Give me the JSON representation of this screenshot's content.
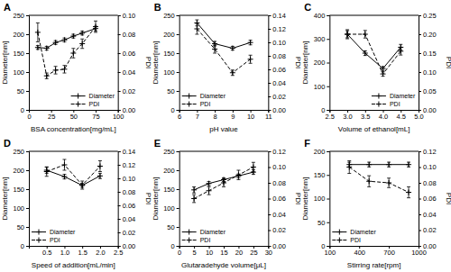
{
  "chart_data": [
    {
      "type": "line",
      "title": "A",
      "xlabel": "BSA concentration[mg/mL]",
      "ylabel": "Diameter[nm]",
      "y2label": "PDI",
      "x": [
        10,
        20,
        30,
        40,
        50,
        60,
        75
      ],
      "xlim": [
        0,
        100
      ],
      "xticks": [
        0,
        25,
        50,
        75,
        100
      ],
      "ylim": [
        0,
        250
      ],
      "yticks": [
        0,
        50,
        100,
        150,
        200,
        250
      ],
      "y2lim": [
        0,
        0.1
      ],
      "y2ticks": [
        {
          "value": 0,
          "label": "0.00"
        },
        0.02,
        0.04,
        0.06,
        0.08,
        {
          "value": 0.1,
          "label": "0.10"
        }
      ],
      "grid": false,
      "legend": "lower right",
      "series": [
        {
          "name": "Diameter",
          "color": "#000000",
          "line_style": "solid",
          "marker": "plus",
          "values": [
            165,
            163,
            178,
            185,
            195,
            203,
            215
          ],
          "errors": [
            5,
            5,
            5,
            5,
            5,
            5,
            6
          ]
        },
        {
          "name": "PDI",
          "axis": "y2",
          "color": "#000000",
          "line_style": "dashed",
          "marker": "plus",
          "values": [
            0.082,
            0.036,
            0.042,
            0.043,
            0.06,
            0.07,
            0.088
          ],
          "errors": [
            0.01,
            0.003,
            0.004,
            0.004,
            0.005,
            0.005,
            0.006
          ]
        }
      ]
    },
    {
      "type": "line",
      "title": "B",
      "xlabel": "pH value",
      "ylabel": "Diameter[nm]",
      "y2label": "PDI",
      "x": [
        7,
        8,
        9,
        10
      ],
      "xlim": [
        6,
        11
      ],
      "xticks": [
        6,
        7,
        8,
        9,
        10,
        11
      ],
      "ylim": [
        0,
        250
      ],
      "yticks": [
        0,
        50,
        100,
        150,
        200,
        250
      ],
      "y2lim": [
        0,
        0.14
      ],
      "y2ticks": [
        {
          "value": 0,
          "label": "0.00"
        },
        0.02,
        0.04,
        0.06,
        0.08,
        {
          "value": 0.1,
          "label": "0.10"
        },
        0.12,
        0.14
      ],
      "grid": false,
      "legend": "lower left",
      "series": [
        {
          "name": "Diameter",
          "color": "#000000",
          "line_style": "solid",
          "marker": "plus",
          "values": [
            230,
            175,
            163,
            178
          ],
          "errors": [
            8,
            6,
            5,
            6
          ]
        },
        {
          "name": "PDI",
          "axis": "y2",
          "color": "#000000",
          "line_style": "dashed",
          "marker": "plus",
          "values": [
            0.12,
            0.09,
            0.055,
            0.075
          ],
          "errors": [
            0.008,
            0.006,
            0.004,
            0.006
          ]
        }
      ]
    },
    {
      "type": "line",
      "title": "C",
      "xlabel": "Volume of ethanol[mL]",
      "ylabel": "Diameter[nm]",
      "y2label": "PDI",
      "x": [
        3,
        3.5,
        4,
        4.5
      ],
      "xlim": [
        2.5,
        5
      ],
      "xticks": [
        2.5,
        {
          "value": 3,
          "label": "3.0"
        },
        3.5,
        {
          "value": 4,
          "label": "4.0"
        },
        4.5,
        {
          "value": 5,
          "label": "5.0"
        }
      ],
      "ylim": [
        0,
        400
      ],
      "yticks": [
        0,
        100,
        200,
        300,
        400
      ],
      "y2lim": [
        0,
        0.25
      ],
      "y2ticks": [
        {
          "value": 0,
          "label": "0.00"
        },
        0.05,
        {
          "value": 0.1,
          "label": "0.10"
        },
        0.15,
        {
          "value": 0.2,
          "label": "0.20"
        },
        0.25
      ],
      "grid": false,
      "legend": "lower right",
      "series": [
        {
          "name": "Diameter",
          "color": "#000000",
          "line_style": "solid",
          "marker": "plus",
          "values": [
            320,
            240,
            175,
            265
          ],
          "errors": [
            15,
            10,
            8,
            12
          ]
        },
        {
          "name": "PDI",
          "axis": "y2",
          "color": "#000000",
          "line_style": "dashed",
          "marker": "plus",
          "values": [
            0.2,
            0.2,
            0.095,
            0.155
          ],
          "errors": [
            0.012,
            0.01,
            0.006,
            0.01
          ]
        }
      ]
    },
    {
      "type": "line",
      "title": "D",
      "xlabel": "Speed of addition[mL/min]",
      "ylabel": "Diameter[nm]",
      "y2label": "PDI",
      "x": [
        0.5,
        1,
        1.5,
        2
      ],
      "xlim": [
        0,
        2.5
      ],
      "xticks": [
        0.5,
        {
          "value": 1,
          "label": "1.0"
        },
        1.5,
        {
          "value": 2,
          "label": "2.0"
        },
        2.5
      ],
      "ylim": [
        0,
        250
      ],
      "yticks": [
        0,
        50,
        100,
        150,
        200,
        250
      ],
      "y2lim": [
        0,
        0.14
      ],
      "y2ticks": [
        {
          "value": 0,
          "label": "0.00"
        },
        0.02,
        0.04,
        0.06,
        0.08,
        {
          "value": 0.1,
          "label": "0.10"
        },
        0.12,
        0.14
      ],
      "grid": false,
      "legend": "lower left",
      "series": [
        {
          "name": "Diameter",
          "color": "#000000",
          "line_style": "solid",
          "marker": "plus",
          "values": [
            200,
            183,
            160,
            185
          ],
          "errors": [
            8,
            6,
            5,
            7
          ]
        },
        {
          "name": "PDI",
          "axis": "y2",
          "color": "#000000",
          "line_style": "dashed",
          "marker": "plus",
          "values": [
            0.11,
            0.12,
            0.09,
            0.118
          ],
          "errors": [
            0.007,
            0.008,
            0.006,
            0.008
          ]
        }
      ]
    },
    {
      "type": "line",
      "title": "E",
      "xlabel": "Glutaradehyde volume[μL]",
      "ylabel": "Diameter[nm]",
      "y2label": "PDI",
      "x": [
        5,
        10,
        15,
        20,
        25
      ],
      "xlim": [
        0,
        30
      ],
      "xticks": [
        0,
        5,
        10,
        15,
        20,
        25,
        30
      ],
      "ylim": [
        0,
        250
      ],
      "yticks": [
        0,
        50,
        100,
        150,
        200,
        250
      ],
      "y2lim": [
        0,
        0.12
      ],
      "y2ticks": [
        {
          "value": 0,
          "label": "0.00"
        },
        0.02,
        0.04,
        0.06,
        0.08,
        {
          "value": 0.1,
          "label": "0.10"
        },
        0.12
      ],
      "grid": false,
      "legend": "lower left",
      "series": [
        {
          "name": "Diameter",
          "color": "#000000",
          "line_style": "solid",
          "marker": "plus",
          "values": [
            148,
            165,
            175,
            185,
            195
          ],
          "errors": [
            8,
            5,
            5,
            5,
            6
          ]
        },
        {
          "name": "PDI",
          "axis": "y2",
          "color": "#000000",
          "line_style": "dashed",
          "marker": "plus",
          "values": [
            0.06,
            0.07,
            0.08,
            0.09,
            0.1
          ],
          "errors": [
            0.005,
            0.005,
            0.005,
            0.006,
            0.006
          ]
        }
      ]
    },
    {
      "type": "line",
      "title": "F",
      "xlabel": "Stirring rate[rpm]",
      "ylabel": "Diameter[nm]",
      "y2label": "PDI",
      "x": [
        300,
        500,
        700,
        900
      ],
      "xlim": [
        100,
        1000
      ],
      "xticks": [
        100,
        400,
        700,
        1000
      ],
      "ylim": [
        0,
        200
      ],
      "yticks": [
        0,
        50,
        100,
        150,
        200
      ],
      "y2lim": [
        0,
        0.12
      ],
      "y2ticks": [
        {
          "value": 0,
          "label": "0.00"
        },
        0.02,
        0.04,
        0.06,
        0.08,
        {
          "value": 0.1,
          "label": "0.10"
        },
        0.12
      ],
      "grid": false,
      "legend": "lower left",
      "series": [
        {
          "name": "Diameter",
          "color": "#000000",
          "line_style": "solid",
          "marker": "plus",
          "values": [
            172,
            172,
            172,
            172
          ],
          "errors": [
            5,
            5,
            5,
            5
          ]
        },
        {
          "name": "PDI",
          "axis": "y2",
          "color": "#000000",
          "line_style": "dashed",
          "marker": "plus",
          "values": [
            0.1,
            0.082,
            0.08,
            0.068
          ],
          "errors": [
            0.008,
            0.007,
            0.006,
            0.007
          ]
        }
      ]
    }
  ]
}
